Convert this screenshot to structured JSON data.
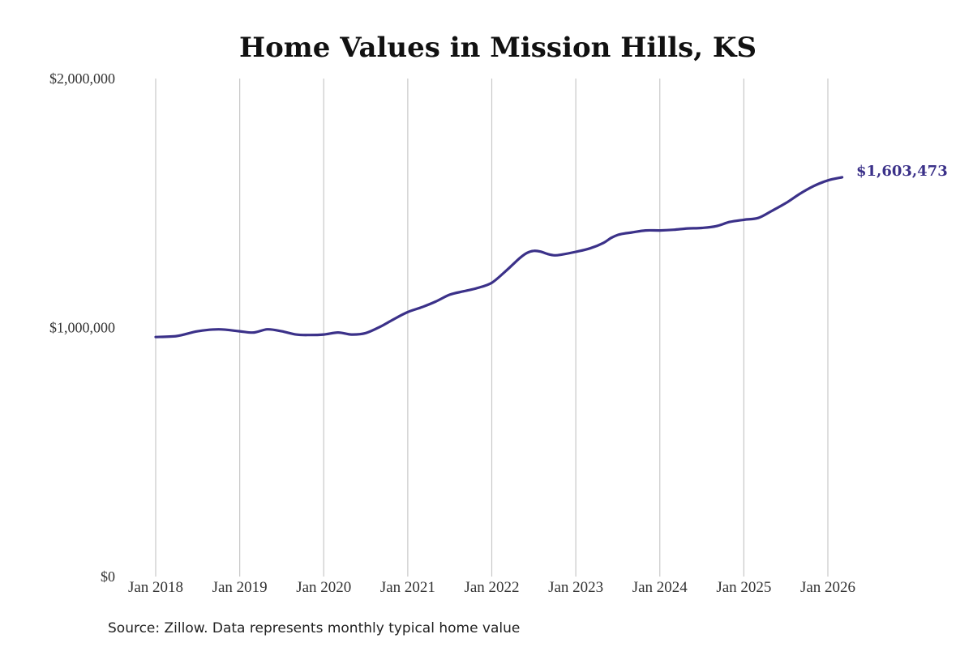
{
  "chart_data": {
    "type": "line",
    "title": "Home Values in Mission Hills, KS",
    "source": "Source: Zillow. Data represents monthly typical home value",
    "y_ticks": [
      {
        "value": 0,
        "label": "$0"
      },
      {
        "value": 1000000,
        "label": "$1,000,000"
      },
      {
        "value": 2000000,
        "label": "$2,000,000"
      }
    ],
    "x_ticks": [
      {
        "value": 2018.0,
        "label": "Jan 2018"
      },
      {
        "value": 2019.0,
        "label": "Jan 2019"
      },
      {
        "value": 2020.0,
        "label": "Jan 2020"
      },
      {
        "value": 2021.0,
        "label": "Jan 2021"
      },
      {
        "value": 2022.0,
        "label": "Jan 2022"
      },
      {
        "value": 2023.0,
        "label": "Jan 2023"
      },
      {
        "value": 2024.0,
        "label": "Jan 2024"
      },
      {
        "value": 2025.0,
        "label": "Jan 2025"
      },
      {
        "value": 2026.0,
        "label": "Jan 2026"
      }
    ],
    "xlim": [
      2018.0,
      2026.17
    ],
    "ylim": [
      0,
      2000000
    ],
    "grid": "vertical",
    "series_color": "#3b3189",
    "end_label": "$1,603,473",
    "series": [
      {
        "x": [
          2018.0,
          2018.25,
          2018.5,
          2018.75,
          2019.0,
          2019.17,
          2019.33,
          2019.5,
          2019.67,
          2019.83,
          2020.0,
          2020.17,
          2020.33,
          2020.5,
          2020.67,
          2020.83,
          2021.0,
          2021.17,
          2021.33,
          2021.5,
          2021.67,
          2021.83,
          2022.0,
          2022.17,
          2022.33,
          2022.42,
          2022.5,
          2022.58,
          2022.67,
          2022.75,
          2022.83,
          2023.0,
          2023.17,
          2023.33,
          2023.42,
          2023.5,
          2023.58,
          2023.67,
          2023.83,
          2024.0,
          2024.17,
          2024.33,
          2024.5,
          2024.67,
          2024.83,
          2025.0,
          2025.17,
          2025.33,
          2025.5,
          2025.67,
          2025.83,
          2026.0,
          2026.17
        ],
        "y": [
          962000,
          966000,
          985000,
          993000,
          985000,
          980000,
          993000,
          985000,
          972000,
          970000,
          972000,
          980000,
          972000,
          978000,
          1003000,
          1033000,
          1062000,
          1082000,
          1104000,
          1132000,
          1146000,
          1159000,
          1180000,
          1228000,
          1278000,
          1300000,
          1308000,
          1305000,
          1295000,
          1290000,
          1293000,
          1304000,
          1318000,
          1340000,
          1360000,
          1372000,
          1378000,
          1382000,
          1390000,
          1390000,
          1393000,
          1398000,
          1400000,
          1407000,
          1424000,
          1433000,
          1440000,
          1468000,
          1500000,
          1538000,
          1568000,
          1591000,
          1603473
        ]
      }
    ]
  }
}
